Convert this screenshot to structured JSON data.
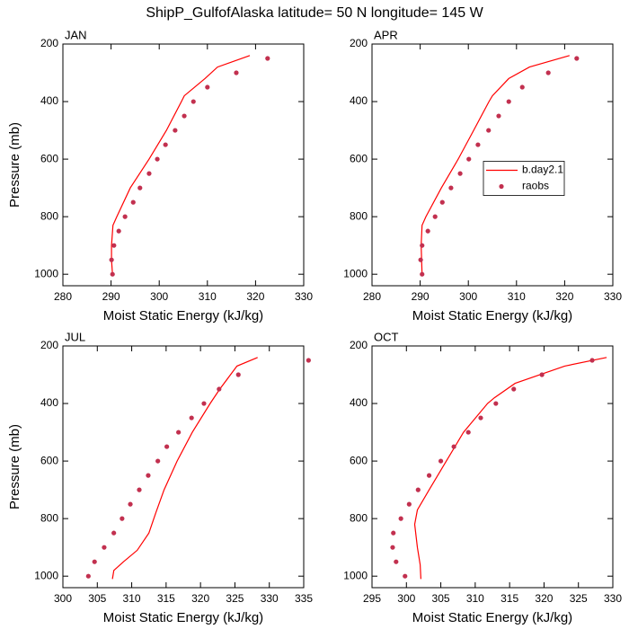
{
  "title": "ShipP_GulfofAlaska  latitude= 50 N longitude= 145 W",
  "chart_data": [
    {
      "type": "line",
      "title": "JAN",
      "xlabel": "Moist Static Energy (kJ/kg)",
      "ylabel": "Pressure (mb)",
      "xlim": [
        280,
        330
      ],
      "xticks": [
        280,
        290,
        300,
        310,
        320,
        330
      ],
      "ylim": [
        1040,
        200
      ],
      "yticks": [
        200,
        400,
        600,
        800,
        1000
      ],
      "series": [
        {
          "type": "line",
          "color": "#ff0000",
          "x": [
            318.8,
            312.1,
            309.5,
            305.2,
            304.6,
            301.5,
            297.9,
            294.0,
            291.2,
            290.4,
            290.1,
            290.1,
            290.3
          ],
          "y": [
            240,
            280,
            320,
            380,
            400,
            500,
            600,
            700,
            800,
            830,
            900,
            950,
            1000
          ]
        },
        {
          "type": "scatter",
          "color": "#c2304f",
          "x": [
            322.5,
            316.0,
            310.0,
            307.1,
            305.2,
            303.3,
            301.3,
            299.6,
            297.9,
            296.0,
            294.6,
            292.9,
            291.6,
            290.6,
            290.1,
            290.3
          ],
          "y": [
            250,
            300,
            350,
            400,
            450,
            500,
            550,
            600,
            650,
            700,
            750,
            800,
            850,
            900,
            950,
            1000
          ]
        }
      ]
    },
    {
      "type": "line",
      "title": "APR",
      "xlabel": "Moist Static Energy (kJ/kg)",
      "xlim": [
        280,
        330
      ],
      "xticks": [
        280,
        290,
        300,
        310,
        320,
        330
      ],
      "ylim": [
        1040,
        200
      ],
      "yticks": [
        200,
        400,
        600,
        800,
        1000
      ],
      "legend": "right",
      "series": [
        {
          "name": "b.day2.1",
          "type": "line",
          "color": "#ff0000",
          "x": [
            321.0,
            312.7,
            308.4,
            305.0,
            304.3,
            301.1,
            297.9,
            294.4,
            291.2,
            290.4,
            290.2,
            290.4
          ],
          "y": [
            240,
            280,
            320,
            380,
            400,
            500,
            600,
            700,
            800,
            830,
            900,
            1000
          ]
        },
        {
          "name": "raobs",
          "type": "scatter",
          "color": "#c2304f",
          "x": [
            322.5,
            316.6,
            311.2,
            308.4,
            306.3,
            304.2,
            302.0,
            300.1,
            298.3,
            296.4,
            294.6,
            293.1,
            291.6,
            290.4,
            290.1,
            290.4
          ],
          "y": [
            250,
            300,
            350,
            400,
            450,
            500,
            550,
            600,
            650,
            700,
            750,
            800,
            850,
            900,
            950,
            1000
          ]
        }
      ]
    },
    {
      "type": "line",
      "title": "JUL",
      "xlabel": "Moist Static Energy (kJ/kg)",
      "ylabel": "Pressure (mb)",
      "xlim": [
        300,
        335
      ],
      "xticks": [
        300,
        305,
        310,
        315,
        320,
        325,
        330,
        335
      ],
      "ylim": [
        1040,
        200
      ],
      "yticks": [
        200,
        400,
        600,
        800,
        1000
      ],
      "series": [
        {
          "type": "line",
          "color": "#ff0000",
          "x": [
            328.3,
            325.3,
            322.8,
            321.4,
            318.8,
            316.6,
            314.7,
            313.5,
            312.5,
            310.8,
            308.8,
            307.4,
            307.2
          ],
          "y": [
            240,
            270,
            350,
            400,
            500,
            600,
            700,
            780,
            850,
            910,
            950,
            980,
            1010
          ]
        },
        {
          "type": "scatter",
          "color": "#c2304f",
          "x": [
            335.7,
            325.5,
            322.7,
            320.5,
            318.7,
            316.8,
            315.1,
            313.8,
            312.4,
            311.1,
            309.8,
            308.6,
            307.4,
            306.0,
            304.6,
            303.7
          ],
          "y": [
            250,
            300,
            350,
            400,
            450,
            500,
            550,
            600,
            650,
            700,
            750,
            800,
            850,
            900,
            950,
            1000
          ]
        }
      ]
    },
    {
      "type": "line",
      "title": "OCT",
      "xlabel": "Moist Static Energy (kJ/kg)",
      "xlim": [
        295,
        330
      ],
      "xticks": [
        295,
        300,
        305,
        310,
        315,
        320,
        325,
        330
      ],
      "ylim": [
        1040,
        200
      ],
      "yticks": [
        200,
        400,
        600,
        800,
        1000
      ],
      "series": [
        {
          "type": "line",
          "color": "#ff0000",
          "x": [
            329.1,
            323.0,
            315.8,
            312.8,
            311.8,
            308.3,
            305.8,
            303.3,
            301.6,
            301.2,
            301.6,
            302.0,
            302.1
          ],
          "y": [
            240,
            270,
            330,
            380,
            400,
            500,
            600,
            700,
            770,
            820,
            900,
            960,
            1010
          ]
        },
        {
          "type": "scatter",
          "color": "#c2304f",
          "x": [
            327.0,
            319.7,
            315.6,
            313.0,
            310.8,
            309.0,
            306.9,
            305.0,
            303.3,
            301.7,
            300.4,
            299.2,
            298.1,
            298.0,
            298.5,
            299.8
          ],
          "y": [
            250,
            300,
            350,
            400,
            450,
            500,
            550,
            600,
            650,
            700,
            750,
            800,
            850,
            900,
            950,
            1000
          ]
        }
      ]
    }
  ]
}
